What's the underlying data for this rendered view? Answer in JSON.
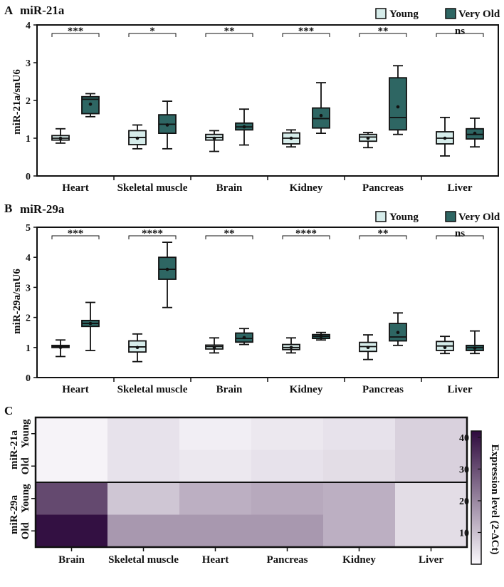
{
  "panels": {
    "A": {
      "letter": "A",
      "title": "miR-21a"
    },
    "B": {
      "letter": "B",
      "title": "miR-29a"
    },
    "C": {
      "letter": "C"
    }
  },
  "legend": {
    "young": "Young",
    "very_old": "Very Old"
  },
  "colors": {
    "young_fill": "#d6ecea",
    "very_old_fill": "#2e6663",
    "stroke": "#111111",
    "heat_low": "#fbf9fd",
    "heat_high": "#2e0a3d"
  },
  "chart_data": [
    {
      "type": "box",
      "title": "miR-21a",
      "ylabel": "miR-21a/snU6",
      "ylim": [
        0,
        4
      ],
      "yticks": [
        0,
        1,
        2,
        3,
        4
      ],
      "categories": [
        "Heart",
        "Skeletal muscle",
        "Brain",
        "Kidney",
        "Pancreas",
        "Liver"
      ],
      "significance": [
        "***",
        "*",
        "**",
        "***",
        "**",
        "ns"
      ],
      "series": [
        {
          "name": "Young",
          "boxes": [
            {
              "min": 0.87,
              "q1": 0.95,
              "median": 1.0,
              "q3": 1.07,
              "max": 1.25,
              "mean": 1.0
            },
            {
              "min": 0.72,
              "q1": 0.83,
              "median": 1.02,
              "q3": 1.2,
              "max": 1.35,
              "mean": 1.0
            },
            {
              "min": 0.65,
              "q1": 0.95,
              "median": 1.02,
              "q3": 1.1,
              "max": 1.2,
              "mean": 1.0
            },
            {
              "min": 0.77,
              "q1": 0.85,
              "median": 1.0,
              "q3": 1.14,
              "max": 1.22,
              "mean": 1.0
            },
            {
              "min": 0.75,
              "q1": 0.92,
              "median": 1.03,
              "q3": 1.1,
              "max": 1.15,
              "mean": 1.0
            },
            {
              "min": 0.53,
              "q1": 0.85,
              "median": 1.0,
              "q3": 1.17,
              "max": 1.55,
              "mean": 1.0
            }
          ]
        },
        {
          "name": "Very Old",
          "boxes": [
            {
              "min": 1.57,
              "q1": 1.65,
              "median": 2.03,
              "q3": 2.1,
              "max": 2.18,
              "mean": 1.9
            },
            {
              "min": 0.72,
              "q1": 1.13,
              "median": 1.37,
              "q3": 1.62,
              "max": 1.98,
              "mean": 1.35
            },
            {
              "min": 0.82,
              "q1": 1.22,
              "median": 1.3,
              "q3": 1.4,
              "max": 1.77,
              "mean": 1.3
            },
            {
              "min": 1.13,
              "q1": 1.27,
              "median": 1.52,
              "q3": 1.8,
              "max": 2.47,
              "mean": 1.6
            },
            {
              "min": 1.1,
              "q1": 1.22,
              "median": 1.55,
              "q3": 2.6,
              "max": 2.92,
              "mean": 1.83
            },
            {
              "min": 0.77,
              "q1": 0.98,
              "median": 1.1,
              "q3": 1.25,
              "max": 1.53,
              "mean": 1.13
            }
          ]
        }
      ]
    },
    {
      "type": "box",
      "title": "miR-29a",
      "ylabel": "miR-29a/snU6",
      "ylim": [
        0,
        5
      ],
      "yticks": [
        0,
        1,
        2,
        3,
        4,
        5
      ],
      "categories": [
        "Heart",
        "Skeletal muscle",
        "Brain",
        "Kidney",
        "Pancreas",
        "Liver"
      ],
      "significance": [
        "***",
        "****",
        "**",
        "****",
        "**",
        "ns"
      ],
      "series": [
        {
          "name": "Young",
          "boxes": [
            {
              "min": 0.7,
              "q1": 1.0,
              "median": 1.03,
              "q3": 1.07,
              "max": 1.25,
              "mean": 1.0
            },
            {
              "min": 0.53,
              "q1": 0.85,
              "median": 1.02,
              "q3": 1.22,
              "max": 1.45,
              "mean": 1.0
            },
            {
              "min": 0.82,
              "q1": 0.95,
              "median": 1.03,
              "q3": 1.08,
              "max": 1.32,
              "mean": 1.0
            },
            {
              "min": 0.82,
              "q1": 0.93,
              "median": 1.0,
              "q3": 1.1,
              "max": 1.32,
              "mean": 1.0
            },
            {
              "min": 0.6,
              "q1": 0.87,
              "median": 1.03,
              "q3": 1.17,
              "max": 1.42,
              "mean": 1.0
            },
            {
              "min": 0.8,
              "q1": 0.9,
              "median": 1.05,
              "q3": 1.2,
              "max": 1.37,
              "mean": 1.0
            }
          ]
        },
        {
          "name": "Very Old",
          "boxes": [
            {
              "min": 0.9,
              "q1": 1.7,
              "median": 1.8,
              "q3": 1.9,
              "max": 2.5,
              "mean": 1.8
            },
            {
              "min": 2.33,
              "q1": 3.27,
              "median": 3.6,
              "q3": 4.0,
              "max": 4.5,
              "mean": 3.6
            },
            {
              "min": 1.1,
              "q1": 1.18,
              "median": 1.3,
              "q3": 1.48,
              "max": 1.63,
              "mean": 1.33
            },
            {
              "min": 1.25,
              "q1": 1.3,
              "median": 1.37,
              "q3": 1.43,
              "max": 1.5,
              "mean": 1.37
            },
            {
              "min": 1.07,
              "q1": 1.22,
              "median": 1.35,
              "q3": 1.8,
              "max": 2.15,
              "mean": 1.5
            },
            {
              "min": 0.8,
              "q1": 0.9,
              "median": 1.0,
              "q3": 1.07,
              "max": 1.55,
              "mean": 0.98
            }
          ]
        }
      ]
    },
    {
      "type": "heatmap",
      "x": [
        "Brain",
        "Skeletal muscle",
        "Heart",
        "Pancreas",
        "Kidney",
        "Liver"
      ],
      "rows": [
        {
          "group": "miR-21a",
          "row": "Young",
          "values": [
            1,
            4,
            2,
            3,
            4,
            7
          ]
        },
        {
          "group": "miR-21a",
          "row": "Old",
          "values": [
            1,
            4,
            3,
            4,
            5,
            7
          ]
        },
        {
          "group": "miR-29a",
          "row": "Young",
          "values": [
            31,
            9,
            13,
            14,
            13,
            5
          ]
        },
        {
          "group": "miR-29a",
          "row": "Old",
          "values": [
            41,
            17,
            17,
            17,
            13,
            5
          ]
        }
      ],
      "colorbar": {
        "label": "Expression level (2-ΔCt)",
        "range": [
          0,
          42
        ],
        "ticks": [
          10,
          20,
          30,
          40
        ]
      }
    }
  ]
}
